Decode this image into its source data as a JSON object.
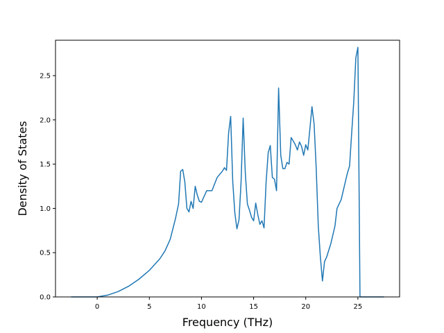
{
  "chart_data": {
    "type": "line",
    "title": "",
    "xlabel": "Frequency (THz)",
    "ylabel": "Density of States",
    "xlim": [
      -4.0,
      29.0
    ],
    "ylim": [
      0.0,
      2.9
    ],
    "xticks": [
      0,
      5,
      10,
      15,
      20,
      25
    ],
    "yticks": [
      0.0,
      0.5,
      1.0,
      1.5,
      2.0,
      2.5
    ],
    "grid": false,
    "legend": "none",
    "series": [
      {
        "color": "#1f77b4",
        "x": [
          -2.5,
          0.0,
          1.0,
          2.0,
          3.0,
          4.0,
          5.0,
          6.0,
          6.5,
          7.0,
          7.5,
          7.8,
          8.0,
          8.2,
          8.4,
          8.6,
          8.8,
          9.0,
          9.2,
          9.4,
          9.6,
          9.8,
          10.0,
          10.5,
          11.0,
          11.5,
          12.0,
          12.2,
          12.4,
          12.6,
          12.8,
          13.0,
          13.2,
          13.4,
          13.6,
          13.8,
          14.0,
          14.2,
          14.4,
          14.6,
          14.8,
          15.0,
          15.2,
          15.4,
          15.6,
          15.8,
          16.0,
          16.2,
          16.4,
          16.6,
          16.8,
          17.0,
          17.2,
          17.4,
          17.6,
          17.8,
          18.0,
          18.2,
          18.4,
          18.6,
          18.8,
          19.0,
          19.2,
          19.4,
          19.6,
          19.8,
          20.0,
          20.2,
          20.4,
          20.6,
          20.8,
          21.0,
          21.2,
          21.4,
          21.6,
          21.8,
          22.0,
          22.4,
          22.8,
          23.0,
          23.4,
          23.8,
          24.0,
          24.2,
          24.4,
          24.6,
          24.8,
          25.0,
          25.2,
          27.5
        ],
        "y": [
          0.0,
          0.0,
          0.02,
          0.06,
          0.12,
          0.2,
          0.3,
          0.43,
          0.52,
          0.65,
          0.88,
          1.05,
          1.42,
          1.44,
          1.3,
          1.0,
          0.96,
          1.08,
          1.0,
          1.25,
          1.15,
          1.08,
          1.07,
          1.2,
          1.2,
          1.35,
          1.42,
          1.46,
          1.43,
          1.85,
          2.04,
          1.3,
          0.95,
          0.77,
          0.87,
          1.3,
          2.02,
          1.4,
          1.05,
          0.98,
          0.9,
          0.86,
          1.06,
          0.93,
          0.82,
          0.86,
          0.78,
          1.3,
          1.63,
          1.71,
          1.35,
          1.33,
          1.2,
          2.36,
          1.6,
          1.45,
          1.45,
          1.52,
          1.5,
          1.8,
          1.76,
          1.72,
          1.66,
          1.75,
          1.7,
          1.6,
          1.72,
          1.66,
          1.9,
          2.15,
          1.95,
          1.45,
          0.8,
          0.45,
          0.18,
          0.4,
          0.45,
          0.6,
          0.8,
          1.0,
          1.1,
          1.3,
          1.4,
          1.48,
          1.85,
          2.2,
          2.7,
          2.82,
          0.0,
          0.0
        ]
      }
    ]
  }
}
